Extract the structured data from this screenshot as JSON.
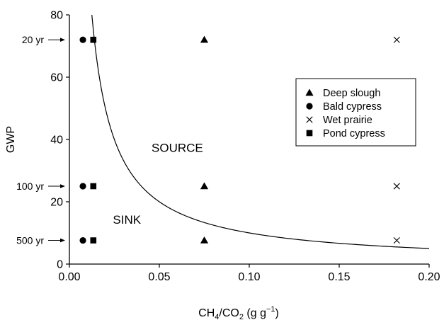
{
  "chart_data": {
    "type": "scatter",
    "title": "",
    "xlabel": {
      "base": "CH",
      "sub1": "4",
      "mid": "/CO",
      "sub2": "2",
      "unit_open": " (g g",
      "sup": "−1",
      "unit_close": ")"
    },
    "ylabel": "GWP",
    "xlim": [
      0,
      0.2
    ],
    "ylim": [
      0,
      80
    ],
    "x_ticks": [
      {
        "value": 0.0,
        "label": "0.00"
      },
      {
        "value": 0.05,
        "label": "0.05"
      },
      {
        "value": 0.1,
        "label": "0.10"
      },
      {
        "value": 0.15,
        "label": "0.15"
      },
      {
        "value": 0.2,
        "label": "0.20"
      }
    ],
    "y_ticks": [
      {
        "value": 0,
        "label": "0"
      },
      {
        "value": 20,
        "label": "20"
      },
      {
        "value": 40,
        "label": "40"
      },
      {
        "value": 60,
        "label": "60"
      },
      {
        "value": 80,
        "label": "80"
      }
    ],
    "horizon_markers": [
      {
        "label": "20 yr",
        "value": 72
      },
      {
        "label": "100 yr",
        "value": 25
      },
      {
        "label": "500 yr",
        "value": 7.6
      }
    ],
    "series": [
      {
        "name": "Deep slough",
        "marker": "triangle",
        "x": [
          0.075,
          0.075,
          0.075
        ],
        "y": [
          72,
          25,
          7.6
        ]
      },
      {
        "name": "Bald cypress",
        "marker": "circle",
        "x": [
          0.0075,
          0.0075,
          0.0075
        ],
        "y": [
          72,
          25,
          7.6
        ]
      },
      {
        "name": "Wet prairie",
        "marker": "x",
        "x": [
          0.182,
          0.182,
          0.182
        ],
        "y": [
          72,
          25,
          7.6
        ]
      },
      {
        "name": "Pond cypress",
        "marker": "square",
        "x": [
          0.0133,
          0.0133,
          0.0133
        ],
        "y": [
          72,
          25,
          7.6
        ]
      }
    ],
    "threshold_curve": {
      "equation": "GWP = k / (CH4/CO2)",
      "k": 1.0,
      "x_range": [
        0.012,
        0.2
      ]
    },
    "region_labels": [
      {
        "text": "SOURCE",
        "x": 0.06,
        "y": 36
      },
      {
        "text": "SINK",
        "x": 0.032,
        "y": 13
      }
    ],
    "legend": {
      "placement": "upper-right",
      "box": true
    },
    "grid": false
  }
}
